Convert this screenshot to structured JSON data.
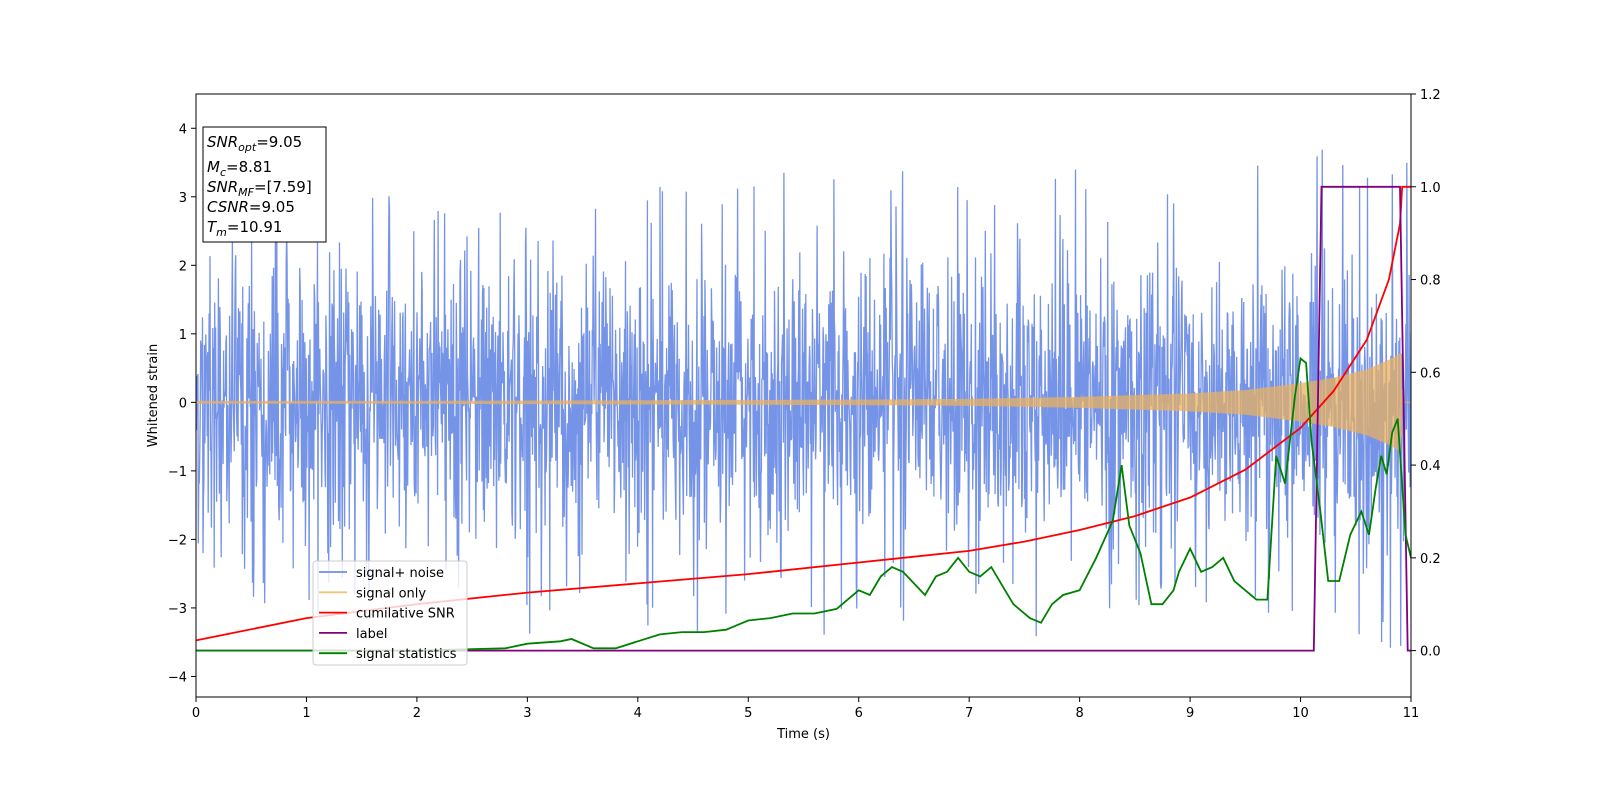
{
  "chart_data": {
    "type": "line",
    "xlabel": "Time (s)",
    "ylabel": "Whitened strain",
    "xlim": [
      0,
      11
    ],
    "ylim": [
      -4.3,
      4.5
    ],
    "y2lim": [
      -0.1,
      1.2
    ],
    "x_ticks": [
      "0",
      "1",
      "2",
      "3",
      "4",
      "5",
      "6",
      "7",
      "8",
      "9",
      "10",
      "11"
    ],
    "y_ticks": [
      "−4",
      "−3",
      "−2",
      "−1",
      "0",
      "1",
      "2",
      "3",
      "4"
    ],
    "y2_ticks": [
      "0.0",
      "0.2",
      "0.4",
      "0.6",
      "0.8",
      "1.0",
      "1.2"
    ],
    "grid": false,
    "legend_position": "lower-left",
    "series": [
      {
        "name": "signal+ noise",
        "axis": "left",
        "color": "#6f8ee6",
        "kind": "noise",
        "typical_std": 1.0,
        "spike_max": [
          [
            0.0,
            2.2
          ],
          [
            0.5,
            3.0
          ],
          [
            1.0,
            2.9
          ],
          [
            1.5,
            3.0
          ],
          [
            2.0,
            3.1
          ],
          [
            2.5,
            3.3
          ],
          [
            3.0,
            2.7
          ],
          [
            3.5,
            3.1
          ],
          [
            4.0,
            3.4
          ],
          [
            4.5,
            3.2
          ],
          [
            5.0,
            3.1
          ],
          [
            5.5,
            3.6
          ],
          [
            6.0,
            3.5
          ],
          [
            6.5,
            3.5
          ],
          [
            7.0,
            3.3
          ],
          [
            7.5,
            3.4
          ],
          [
            8.0,
            3.5
          ],
          [
            8.5,
            3.3
          ],
          [
            9.0,
            3.2
          ],
          [
            9.5,
            4.0
          ],
          [
            10.0,
            4.2
          ],
          [
            10.5,
            3.4
          ],
          [
            11.0,
            3.6
          ]
        ],
        "spike_min": [
          [
            0.0,
            -2.4
          ],
          [
            0.5,
            -2.9
          ],
          [
            1.0,
            -3.1
          ],
          [
            1.5,
            -2.9
          ],
          [
            2.0,
            -2.9
          ],
          [
            2.5,
            -2.8
          ],
          [
            3.0,
            -3.4
          ],
          [
            3.5,
            -2.9
          ],
          [
            4.0,
            -3.3
          ],
          [
            4.5,
            -3.4
          ],
          [
            5.0,
            -3.0
          ],
          [
            5.5,
            -3.5
          ],
          [
            6.0,
            -3.3
          ],
          [
            6.5,
            -3.2
          ],
          [
            7.0,
            -3.2
          ],
          [
            7.5,
            -3.4
          ],
          [
            8.0,
            -3.8
          ],
          [
            8.5,
            -3.0
          ],
          [
            9.0,
            -3.1
          ],
          [
            9.5,
            -3.2
          ],
          [
            10.0,
            -3.4
          ],
          [
            10.5,
            -3.9
          ],
          [
            11.0,
            -3.6
          ]
        ]
      },
      {
        "name": "signal only",
        "axis": "left",
        "color": "#e8b062",
        "kind": "chirp",
        "amplitude": [
          [
            0.0,
            0.02
          ],
          [
            2.0,
            0.02
          ],
          [
            4.0,
            0.03
          ],
          [
            6.0,
            0.04
          ],
          [
            7.0,
            0.05
          ],
          [
            8.0,
            0.08
          ],
          [
            9.0,
            0.13
          ],
          [
            9.5,
            0.18
          ],
          [
            10.0,
            0.28
          ],
          [
            10.3,
            0.36
          ],
          [
            10.6,
            0.48
          ],
          [
            10.8,
            0.62
          ],
          [
            10.91,
            0.72
          ],
          [
            10.92,
            0.0
          ],
          [
            11.0,
            0.0
          ]
        ]
      },
      {
        "name": "cumilative SNR",
        "axis": "right",
        "color": "#ff0000",
        "x": [
          0,
          1,
          2,
          3,
          4,
          5,
          6,
          7,
          7.5,
          8,
          8.5,
          9,
          9.5,
          10,
          10.3,
          10.6,
          10.8,
          10.9,
          10.92,
          11.0
        ],
        "y": [
          0.022,
          0.07,
          0.1,
          0.125,
          0.145,
          0.165,
          0.19,
          0.215,
          0.235,
          0.26,
          0.29,
          0.33,
          0.39,
          0.48,
          0.56,
          0.67,
          0.8,
          0.92,
          1.0,
          1.0
        ]
      },
      {
        "name": "label",
        "axis": "right",
        "color": "#800080",
        "x": [
          0,
          10.12,
          10.19,
          10.9,
          10.97,
          11.0
        ],
        "y": [
          0.0,
          0.0,
          1.0,
          1.0,
          0.0,
          0.0
        ]
      },
      {
        "name": "signal statistics",
        "axis": "right",
        "color": "#008000",
        "x": [
          0,
          2.0,
          2.8,
          3.0,
          3.3,
          3.4,
          3.6,
          3.8,
          4.0,
          4.2,
          4.4,
          4.6,
          4.8,
          4.9,
          5.0,
          5.2,
          5.4,
          5.6,
          5.8,
          5.9,
          6.0,
          6.1,
          6.2,
          6.3,
          6.4,
          6.6,
          6.7,
          6.8,
          6.9,
          7.0,
          7.1,
          7.2,
          7.3,
          7.4,
          7.55,
          7.65,
          7.75,
          7.85,
          8.0,
          8.15,
          8.3,
          8.38,
          8.45,
          8.55,
          8.65,
          8.75,
          8.85,
          8.9,
          9.0,
          9.1,
          9.2,
          9.3,
          9.4,
          9.5,
          9.6,
          9.7,
          9.78,
          9.86,
          9.95,
          10.0,
          10.05,
          10.1,
          10.18,
          10.25,
          10.35,
          10.45,
          10.55,
          10.62,
          10.68,
          10.73,
          10.78,
          10.83,
          10.88,
          10.95,
          11.0
        ],
        "y": [
          0.0,
          0.0,
          0.005,
          0.015,
          0.02,
          0.025,
          0.005,
          0.005,
          0.02,
          0.035,
          0.04,
          0.04,
          0.045,
          0.055,
          0.065,
          0.07,
          0.08,
          0.08,
          0.09,
          0.11,
          0.13,
          0.12,
          0.16,
          0.18,
          0.17,
          0.12,
          0.16,
          0.17,
          0.2,
          0.17,
          0.16,
          0.18,
          0.14,
          0.1,
          0.07,
          0.06,
          0.1,
          0.12,
          0.13,
          0.2,
          0.28,
          0.4,
          0.27,
          0.21,
          0.1,
          0.1,
          0.13,
          0.17,
          0.22,
          0.17,
          0.18,
          0.2,
          0.15,
          0.13,
          0.11,
          0.11,
          0.42,
          0.36,
          0.55,
          0.63,
          0.62,
          0.45,
          0.3,
          0.15,
          0.15,
          0.25,
          0.3,
          0.25,
          0.35,
          0.42,
          0.38,
          0.47,
          0.5,
          0.25,
          0.2
        ]
      }
    ],
    "info_box": [
      {
        "var": "SNR",
        "sub": "opt",
        "value": "=9.05"
      },
      {
        "var": "M",
        "sub": "c",
        "value": "=8.81"
      },
      {
        "var": "SNR",
        "sub": "MF",
        "value": "=[7.59]"
      },
      {
        "var": "CSNR",
        "sub": "",
        "value": "=9.05"
      },
      {
        "var": "T",
        "sub": "m",
        "value": "=10.91"
      }
    ]
  }
}
